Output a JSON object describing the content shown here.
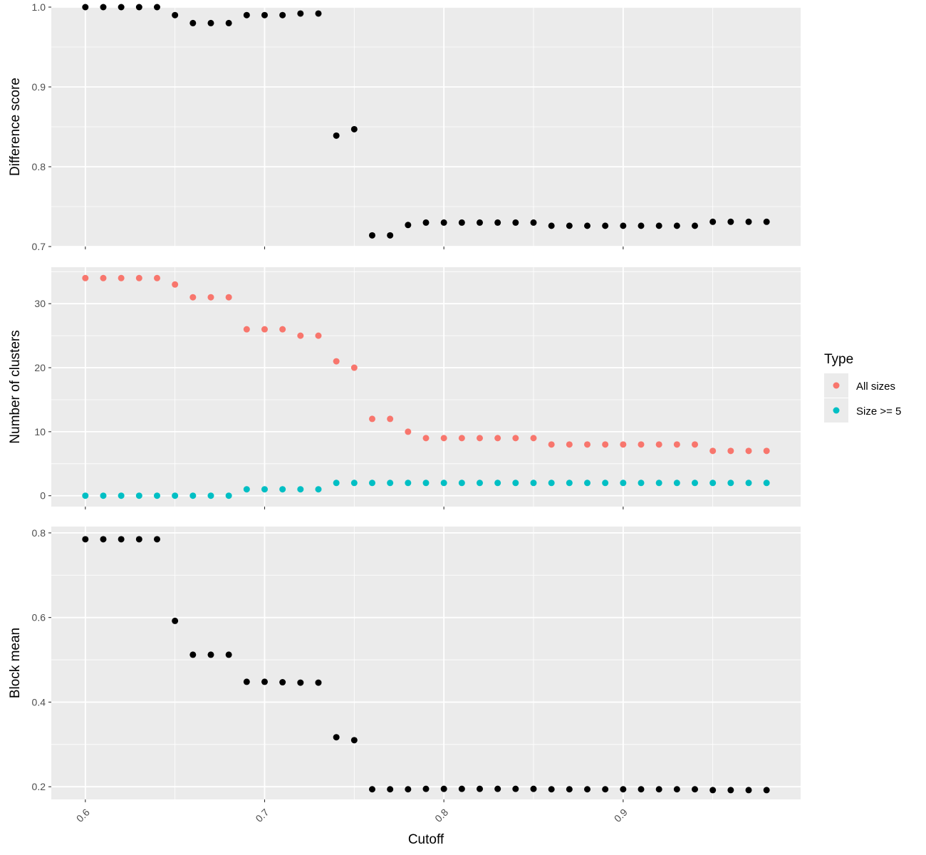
{
  "chart_data": [
    {
      "type": "scatter",
      "panel": "top",
      "ylabel": "Difference score",
      "xlim": [
        0.581,
        0.999
      ],
      "ylim": [
        0.7,
        1.0
      ],
      "yticks": [
        0.7,
        0.8,
        0.9,
        1.0
      ],
      "ytick_labels": [
        "0.7",
        "0.8",
        "0.9",
        "1.0"
      ],
      "series": [
        {
          "color": "#000000",
          "x": [
            0.6,
            0.61,
            0.62,
            0.63,
            0.64,
            0.65,
            0.66,
            0.67,
            0.68,
            0.69,
            0.7,
            0.71,
            0.72,
            0.73,
            0.74,
            0.75,
            0.76,
            0.77,
            0.78,
            0.79,
            0.8,
            0.81,
            0.82,
            0.83,
            0.84,
            0.85,
            0.86,
            0.87,
            0.88,
            0.89,
            0.9,
            0.91,
            0.92,
            0.93,
            0.94,
            0.95,
            0.96,
            0.97,
            0.98
          ],
          "y": [
            1.0,
            1.0,
            1.0,
            1.0,
            1.0,
            0.99,
            0.98,
            0.98,
            0.98,
            0.99,
            0.99,
            0.99,
            0.992,
            0.992,
            0.839,
            0.847,
            0.714,
            0.714,
            0.727,
            0.73,
            0.73,
            0.73,
            0.73,
            0.73,
            0.73,
            0.73,
            0.726,
            0.726,
            0.726,
            0.726,
            0.726,
            0.726,
            0.726,
            0.726,
            0.726,
            0.731,
            0.731,
            0.731,
            0.731
          ]
        }
      ]
    },
    {
      "type": "scatter",
      "panel": "middle",
      "ylabel": "Number of clusters",
      "xlim": [
        0.581,
        0.999
      ],
      "ylim": [
        -1.7,
        35.7
      ],
      "yticks": [
        0,
        10,
        20,
        30
      ],
      "ytick_labels": [
        "0",
        "10",
        "20",
        "30"
      ],
      "series": [
        {
          "name": "All sizes",
          "color": "#F8766D",
          "x": [
            0.6,
            0.61,
            0.62,
            0.63,
            0.64,
            0.65,
            0.66,
            0.67,
            0.68,
            0.69,
            0.7,
            0.71,
            0.72,
            0.73,
            0.74,
            0.75,
            0.76,
            0.77,
            0.78,
            0.79,
            0.8,
            0.81,
            0.82,
            0.83,
            0.84,
            0.85,
            0.86,
            0.87,
            0.88,
            0.89,
            0.9,
            0.91,
            0.92,
            0.93,
            0.94,
            0.95,
            0.96,
            0.97,
            0.98
          ],
          "y": [
            34,
            34,
            34,
            34,
            34,
            33,
            31,
            31,
            31,
            26,
            26,
            26,
            25,
            25,
            21,
            20,
            12,
            12,
            10,
            9,
            9,
            9,
            9,
            9,
            9,
            9,
            8,
            8,
            8,
            8,
            8,
            8,
            8,
            8,
            8,
            7,
            7,
            7,
            7
          ]
        },
        {
          "name": "Size >= 5",
          "color": "#00BFC4",
          "x": [
            0.6,
            0.61,
            0.62,
            0.63,
            0.64,
            0.65,
            0.66,
            0.67,
            0.68,
            0.69,
            0.7,
            0.71,
            0.72,
            0.73,
            0.74,
            0.75,
            0.76,
            0.77,
            0.78,
            0.79,
            0.8,
            0.81,
            0.82,
            0.83,
            0.84,
            0.85,
            0.86,
            0.87,
            0.88,
            0.89,
            0.9,
            0.91,
            0.92,
            0.93,
            0.94,
            0.95,
            0.96,
            0.97,
            0.98
          ],
          "y": [
            0,
            0,
            0,
            0,
            0,
            0,
            0,
            0,
            0,
            1,
            1,
            1,
            1,
            1,
            2,
            2,
            2,
            2,
            2,
            2,
            2,
            2,
            2,
            2,
            2,
            2,
            2,
            2,
            2,
            2,
            2,
            2,
            2,
            2,
            2,
            2,
            2,
            2,
            2
          ]
        }
      ]
    },
    {
      "type": "scatter",
      "panel": "bottom",
      "ylabel": "Block mean",
      "xlabel": "Cutoff",
      "xlim": [
        0.581,
        0.999
      ],
      "ylim": [
        0.17,
        0.815
      ],
      "yticks": [
        0.2,
        0.4,
        0.6,
        0.8
      ],
      "ytick_labels": [
        "0.2",
        "0.4",
        "0.6",
        "0.8"
      ],
      "xticks": [
        0.6,
        0.7,
        0.8,
        0.9
      ],
      "xtick_labels": [
        "0.6",
        "0.7",
        "0.8",
        "0.9"
      ],
      "series": [
        {
          "color": "#000000",
          "x": [
            0.6,
            0.61,
            0.62,
            0.63,
            0.64,
            0.65,
            0.66,
            0.67,
            0.68,
            0.69,
            0.7,
            0.71,
            0.72,
            0.73,
            0.74,
            0.75,
            0.76,
            0.77,
            0.78,
            0.79,
            0.8,
            0.81,
            0.82,
            0.83,
            0.84,
            0.85,
            0.86,
            0.87,
            0.88,
            0.89,
            0.9,
            0.91,
            0.92,
            0.93,
            0.94,
            0.95,
            0.96,
            0.97,
            0.98
          ],
          "y": [
            0.785,
            0.785,
            0.785,
            0.785,
            0.785,
            0.592,
            0.512,
            0.512,
            0.512,
            0.448,
            0.448,
            0.447,
            0.446,
            0.446,
            0.317,
            0.31,
            0.194,
            0.194,
            0.194,
            0.195,
            0.195,
            0.195,
            0.195,
            0.195,
            0.195,
            0.195,
            0.194,
            0.194,
            0.194,
            0.194,
            0.194,
            0.194,
            0.194,
            0.194,
            0.194,
            0.192,
            0.192,
            0.192,
            0.192
          ]
        }
      ]
    }
  ],
  "legend": {
    "title": "Type",
    "entries": [
      {
        "label": "All sizes",
        "color": "#F8766D"
      },
      {
        "label": "Size >= 5",
        "color": "#00BFC4"
      }
    ]
  },
  "colors": {
    "panel_background": "#EBEBEB",
    "grid": "#FFFFFF",
    "text": "#4D4D4D"
  }
}
